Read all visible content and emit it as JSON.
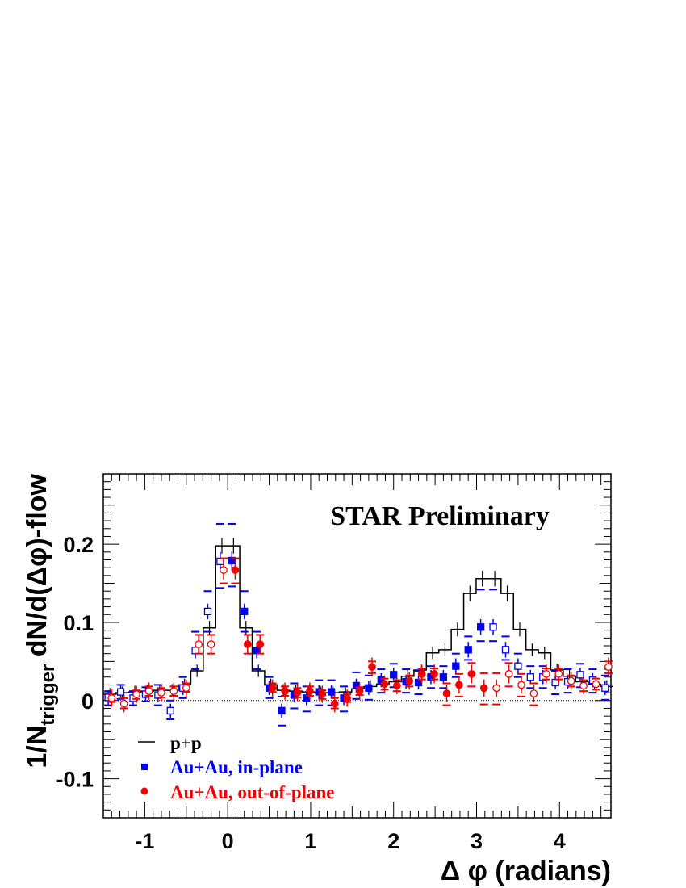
{
  "chart_data": {
    "type": "scatter",
    "annotation": "STAR Preliminary",
    "xlabel": "Δ φ (radians)",
    "ylabel_main": "1/N",
    "ylabel_sub": "trigger",
    "ylabel_rest": " dN/d(Δφ)-flow",
    "xlim": [
      -1.5,
      4.62
    ],
    "ylim": [
      -0.15,
      0.29
    ],
    "xticks": [
      -1,
      0,
      1,
      2,
      3,
      4
    ],
    "xtick_labels": [
      "-1",
      "0",
      "1",
      "2",
      "3",
      "4"
    ],
    "yticks": [
      -0.1,
      0,
      0.1,
      0.2
    ],
    "ytick_labels": [
      "-0.1",
      "0",
      "0.1",
      "0.2"
    ],
    "zero_line": true,
    "legend_position": "bottom-left",
    "colors": {
      "pp": "#000000",
      "in_plane": "#0000ee",
      "out_plane": "#ee0000"
    },
    "series": [
      {
        "name": "p+p",
        "style": "step",
        "x": [
          -1.42,
          -1.27,
          -1.12,
          -0.97,
          -0.82,
          -0.67,
          -0.52,
          -0.37,
          -0.22,
          -0.07,
          0.07,
          0.22,
          0.37,
          0.52,
          0.67,
          0.82,
          0.97,
          1.12,
          1.27,
          1.42,
          1.57,
          1.72,
          1.87,
          2.02,
          2.17,
          2.32,
          2.47,
          2.62,
          2.77,
          2.92,
          3.07,
          3.22,
          3.37,
          3.52,
          3.67,
          3.82,
          3.97,
          4.12,
          4.27,
          4.42,
          4.57
        ],
        "y": [
          0.008,
          0.01,
          0.011,
          0.012,
          0.013,
          0.013,
          0.02,
          0.038,
          0.093,
          0.198,
          0.198,
          0.093,
          0.038,
          0.02,
          0.013,
          0.012,
          0.011,
          0.01,
          0.01,
          0.011,
          0.015,
          0.018,
          0.021,
          0.024,
          0.031,
          0.039,
          0.061,
          0.065,
          0.091,
          0.137,
          0.156,
          0.156,
          0.137,
          0.091,
          0.065,
          0.061,
          0.039,
          0.031,
          0.024,
          0.021,
          0.018
        ],
        "err": [
          0.008,
          0.008,
          0.008,
          0.008,
          0.008,
          0.008,
          0.008,
          0.008,
          0.009,
          0.01,
          0.01,
          0.009,
          0.008,
          0.008,
          0.008,
          0.008,
          0.008,
          0.008,
          0.008,
          0.008,
          0.008,
          0.008,
          0.008,
          0.008,
          0.008,
          0.008,
          0.008,
          0.008,
          0.009,
          0.01,
          0.01,
          0.01,
          0.01,
          0.009,
          0.008,
          0.008,
          0.008,
          0.008,
          0.008,
          0.008,
          0.008
        ]
      },
      {
        "name": "Au+Au, in-plane",
        "marker": "square",
        "x": [
          -1.42,
          -1.27,
          -1.12,
          -0.97,
          -0.82,
          -0.67,
          -0.52,
          -0.37,
          -0.22,
          -0.07,
          0.07,
          0.22,
          0.37,
          0.52,
          0.67,
          0.82,
          0.97,
          1.12,
          1.27,
          1.42,
          1.57,
          1.72,
          1.87,
          2.02,
          2.17,
          2.32,
          2.47,
          2.62,
          2.77,
          2.92,
          3.07,
          3.22,
          3.37,
          3.52,
          3.67,
          3.82,
          3.97,
          4.12,
          4.27,
          4.42,
          4.57
        ],
        "y": [
          0.004,
          0.011,
          0.003,
          0.008,
          0.007,
          -0.013,
          0.016,
          0.064,
          0.114,
          0.178,
          0.179,
          0.114,
          0.064,
          0.016,
          -0.013,
          0.007,
          0.003,
          0.011,
          0.011,
          0.003,
          0.019,
          0.016,
          0.026,
          0.033,
          0.024,
          0.023,
          0.03,
          0.03,
          0.044,
          0.065,
          0.094,
          0.094,
          0.065,
          0.044,
          0.03,
          0.03,
          0.023,
          0.024,
          0.033,
          0.026,
          0.016
        ],
        "hollow": [
          true,
          true,
          true,
          true,
          true,
          true,
          true,
          true,
          true,
          true,
          false,
          false,
          false,
          false,
          false,
          false,
          false,
          false,
          false,
          false,
          false,
          false,
          false,
          false,
          false,
          false,
          false,
          false,
          false,
          false,
          false,
          true,
          true,
          true,
          true,
          true,
          true,
          true,
          true,
          true,
          true
        ],
        "err": [
          0.009,
          0.009,
          0.009,
          0.009,
          0.009,
          0.009,
          0.009,
          0.01,
          0.01,
          0.012,
          0.012,
          0.01,
          0.01,
          0.009,
          0.009,
          0.009,
          0.009,
          0.009,
          0.009,
          0.009,
          0.009,
          0.009,
          0.009,
          0.009,
          0.009,
          0.009,
          0.009,
          0.009,
          0.01,
          0.01,
          0.01,
          0.01,
          0.01,
          0.01,
          0.009,
          0.009,
          0.009,
          0.009,
          0.009,
          0.009,
          0.009
        ],
        "sys_lo": [
          -0.006,
          0.002,
          -0.006,
          -0.001,
          -0.006,
          -0.024,
          0.003,
          0.04,
          0.088,
          0.144,
          0.146,
          0.088,
          0.04,
          0.003,
          -0.032,
          -0.01,
          -0.014,
          -0.006,
          -0.006,
          -0.014,
          0.002,
          0.001,
          0.01,
          0.017,
          0.01,
          0.008,
          0.016,
          0.016,
          0.03,
          0.052,
          0.076,
          0.076,
          0.052,
          0.03,
          0.016,
          0.016,
          0.008,
          0.01,
          0.017,
          0.01,
          0.001
        ],
        "sys_hi": [
          0.012,
          0.02,
          0.012,
          0.017,
          0.02,
          0.0,
          0.03,
          0.088,
          0.14,
          0.226,
          0.226,
          0.14,
          0.088,
          0.03,
          0.005,
          0.022,
          0.018,
          0.026,
          0.026,
          0.018,
          0.036,
          0.032,
          0.04,
          0.047,
          0.04,
          0.038,
          0.044,
          0.044,
          0.06,
          0.082,
          0.142,
          0.142,
          0.082,
          0.06,
          0.044,
          0.044,
          0.038,
          0.04,
          0.047,
          0.04,
          0.032
        ]
      },
      {
        "name": "Au+Au, out-of-plane",
        "marker": "circle",
        "x": [
          -1.42,
          -1.27,
          -1.12,
          -0.97,
          -0.82,
          -0.67,
          -0.52,
          -0.37,
          -0.22,
          -0.07,
          0.07,
          0.22,
          0.37,
          0.52,
          0.67,
          0.82,
          0.97,
          1.12,
          1.27,
          1.42,
          1.57,
          1.72,
          1.87,
          2.02,
          2.17,
          2.32,
          2.47,
          2.62,
          2.77,
          2.92,
          3.07,
          3.22,
          3.37,
          3.52,
          3.67,
          3.82,
          3.97,
          4.12,
          4.27,
          4.42,
          4.57
        ],
        "y": [
          0.003,
          -0.004,
          0.008,
          0.012,
          0.01,
          0.012,
          0.016,
          0.072,
          0.072,
          0.167,
          0.167,
          0.072,
          0.072,
          0.016,
          0.012,
          0.01,
          0.012,
          0.008,
          -0.004,
          0.003,
          0.012,
          0.043,
          0.021,
          0.019,
          0.025,
          0.034,
          0.034,
          0.009,
          0.02,
          0.034,
          0.016,
          0.016,
          0.034,
          0.02,
          0.009,
          0.034,
          0.034,
          0.025,
          0.019,
          0.021,
          0.043
        ],
        "hollow": [
          true,
          true,
          true,
          true,
          true,
          true,
          true,
          true,
          true,
          true,
          false,
          false,
          false,
          false,
          false,
          false,
          false,
          false,
          false,
          false,
          false,
          false,
          false,
          false,
          false,
          false,
          false,
          false,
          false,
          false,
          false,
          true,
          true,
          true,
          true,
          true,
          true,
          true,
          true,
          true,
          true
        ],
        "err": [
          0.011,
          0.011,
          0.011,
          0.011,
          0.011,
          0.011,
          0.011,
          0.012,
          0.012,
          0.012,
          0.012,
          0.012,
          0.012,
          0.011,
          0.011,
          0.011,
          0.011,
          0.011,
          0.011,
          0.011,
          0.011,
          0.012,
          0.011,
          0.011,
          0.011,
          0.012,
          0.012,
          0.011,
          0.011,
          0.012,
          0.011,
          0.011,
          0.012,
          0.011,
          0.011,
          0.012,
          0.012,
          0.011,
          0.011,
          0.011,
          0.012
        ],
        "sys_lo": [
          -0.002,
          -0.01,
          0.002,
          0.006,
          0.004,
          0.006,
          0.011,
          0.06,
          0.06,
          0.15,
          0.15,
          0.06,
          0.06,
          0.011,
          0.006,
          0.004,
          0.006,
          0.002,
          -0.01,
          -0.002,
          0.007,
          0.035,
          0.014,
          0.012,
          0.018,
          0.027,
          0.027,
          -0.006,
          0.005,
          0.018,
          -0.005,
          -0.005,
          0.018,
          0.005,
          -0.006,
          0.027,
          0.027,
          0.018,
          0.012,
          0.014,
          0.035
        ],
        "sys_hi": [
          0.008,
          0.003,
          0.013,
          0.018,
          0.016,
          0.018,
          0.022,
          0.084,
          0.084,
          0.182,
          0.182,
          0.084,
          0.084,
          0.022,
          0.018,
          0.016,
          0.018,
          0.013,
          0.003,
          0.008,
          0.017,
          0.05,
          0.028,
          0.026,
          0.032,
          0.041,
          0.041,
          0.022,
          0.034,
          0.048,
          0.035,
          0.035,
          0.048,
          0.034,
          0.022,
          0.041,
          0.041,
          0.032,
          0.026,
          0.028,
          0.05
        ]
      }
    ]
  }
}
